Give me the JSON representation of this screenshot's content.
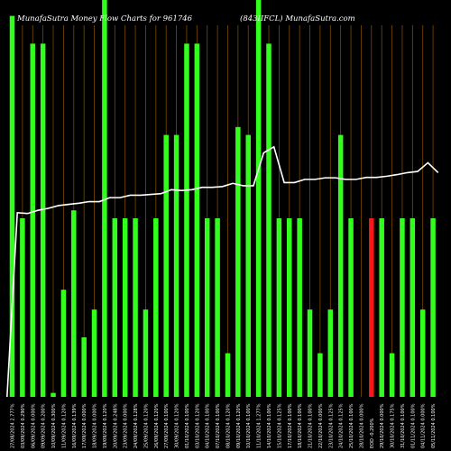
{
  "header": {
    "left": "MunafaSutra  Money Flow  Charts for 961746",
    "right": "(843IIFCL)  MunafaSutra.com"
  },
  "colors": {
    "background": "#000000",
    "up_bar": "#33ff1f",
    "down_bar": "#ff1515",
    "grid": "#7a4b00",
    "line": "#ffffff",
    "text": "#ffffff"
  },
  "chart_data": {
    "type": "bar",
    "ylim": [
      0,
      1
    ],
    "grid": true,
    "categories": [
      "27/08/2024 2.777%",
      "03/09/2024 0.290%",
      "06/09/2024 0.000%",
      "09/09/2024 0.200%",
      "10/09/2024 0.300%",
      "11/09/2024 0.120%",
      "16/09/2024 0.139%",
      "17/09/2024 0.000%",
      "18/09/2024 0.000%",
      "19/09/2024 0.120%",
      "20/09/2024 0.248%",
      "23/09/2024 0.000%",
      "24/09/2024 0.128%",
      "25/09/2024 0.120%",
      "26/09/2024 0.120%",
      "27/09/2024 0.100%",
      "30/09/2024 0.120%",
      "01/10/2024 0.100%",
      "03/10/2024 0.120%",
      "04/10/2024 0.100%",
      "07/10/2024 0.100%",
      "08/10/2024 0.120%",
      "09/10/2024 0.120%",
      "10/10/2024 0.100%",
      "11/10/2024 1.277%",
      "14/10/2024 0.100%",
      "15/10/2024 0.125%",
      "17/10/2024 0.100%",
      "18/10/2024 0.100%",
      "21/10/2024 0.100%",
      "22/10/2024 0.000%",
      "23/10/2024 0.125%",
      "24/10/2024 0.125%",
      "25/10/2024 0.100%",
      "28/10/2024 0.000%",
      "EOD -0.200%",
      "29/10/2024 0.000%",
      "30/10/2024 0.175%",
      "31/10/2024 0.100%",
      "01/11/2024 0.100%",
      "04/11/2024 0.000%",
      "05/11/2024 0.100%"
    ],
    "values": [
      0.96,
      0.45,
      0.89,
      0.89,
      0.01,
      0.27,
      0.47,
      0.15,
      0.22,
      1.0,
      0.45,
      0.45,
      0.45,
      0.22,
      0.45,
      0.66,
      0.66,
      0.89,
      0.89,
      0.45,
      0.45,
      0.11,
      0.68,
      0.66,
      1.0,
      0.89,
      0.45,
      0.45,
      0.45,
      0.22,
      0.11,
      0.22,
      0.66,
      0.45,
      0.0,
      0.45,
      0.45,
      0.11,
      0.45,
      0.45,
      0.22,
      0.45
    ],
    "directions": [
      "up",
      "up",
      "up",
      "up",
      "up",
      "up",
      "up",
      "up",
      "up",
      "up",
      "up",
      "up",
      "up",
      "up",
      "up",
      "up",
      "up",
      "up",
      "up",
      "up",
      "up",
      "up",
      "up",
      "up",
      "up",
      "up",
      "up",
      "up",
      "up",
      "up",
      "up",
      "up",
      "up",
      "up",
      "up",
      "down",
      "up",
      "up",
      "up",
      "up",
      "up",
      "up"
    ],
    "line": [
      0.0,
      0.464,
      0.462,
      0.47,
      0.475,
      0.482,
      0.485,
      0.488,
      0.492,
      0.492,
      0.502,
      0.502,
      0.508,
      0.508,
      0.51,
      0.512,
      0.522,
      0.52,
      0.522,
      0.528,
      0.528,
      0.53,
      0.538,
      0.532,
      0.532,
      0.615,
      0.63,
      0.54,
      0.54,
      0.548,
      0.548,
      0.552,
      0.552,
      0.548,
      0.548,
      0.553,
      0.553,
      0.556,
      0.56,
      0.565,
      0.568,
      0.59,
      0.565
    ],
    "line_x_offset": -0.5
  }
}
